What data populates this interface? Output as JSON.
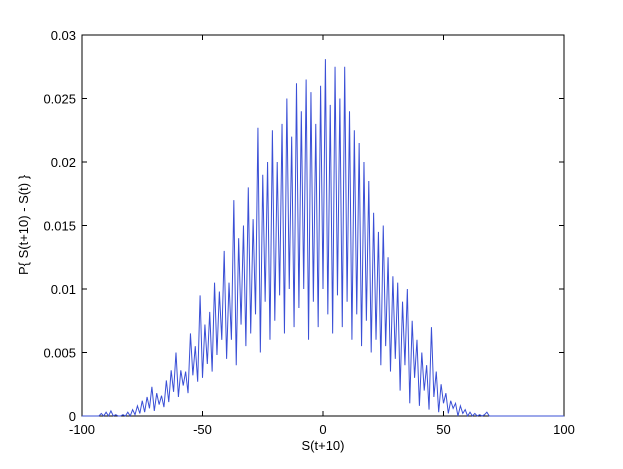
{
  "chart_data": {
    "type": "line",
    "xlabel": "S(t+10)",
    "ylabel": "P{ S(t+10) - S(t) }",
    "color": "#3a4fd6",
    "xlim": [
      -100,
      100
    ],
    "xticks": [
      -100,
      -50,
      0,
      50,
      100
    ],
    "ylim": [
      0,
      0.03
    ],
    "yticks": [
      0,
      0.005,
      0.01,
      0.015,
      0.02,
      0.025,
      0.03
    ],
    "x": [
      -100,
      -99,
      -98,
      -97,
      -96,
      -95,
      -94,
      -93,
      -92,
      -91,
      -90,
      -89,
      -88,
      -87,
      -86,
      -85,
      -84,
      -83,
      -82,
      -81,
      -80,
      -79,
      -78,
      -77,
      -76,
      -75,
      -74,
      -73,
      -72,
      -71,
      -70,
      -69,
      -68,
      -67,
      -66,
      -65,
      -64,
      -63,
      -62,
      -61,
      -60,
      -59,
      -58,
      -57,
      -56,
      -55,
      -54,
      -53,
      -52,
      -51,
      -50,
      -49,
      -48,
      -47,
      -46,
      -45,
      -44,
      -43,
      -42,
      -41,
      -40,
      -39,
      -38,
      -37,
      -36,
      -35,
      -34,
      -33,
      -32,
      -31,
      -30,
      -29,
      -28,
      -27,
      -26,
      -25,
      -24,
      -23,
      -22,
      -21,
      -20,
      -19,
      -18,
      -17,
      -16,
      -15,
      -14,
      -13,
      -12,
      -11,
      -10,
      -9,
      -8,
      -7,
      -6,
      -5,
      -4,
      -3,
      -2,
      -1,
      0,
      1,
      2,
      3,
      4,
      5,
      6,
      7,
      8,
      9,
      10,
      11,
      12,
      13,
      14,
      15,
      16,
      17,
      18,
      19,
      20,
      21,
      22,
      23,
      24,
      25,
      26,
      27,
      28,
      29,
      30,
      31,
      32,
      33,
      34,
      35,
      36,
      37,
      38,
      39,
      40,
      41,
      42,
      43,
      44,
      45,
      46,
      47,
      48,
      49,
      50,
      51,
      52,
      53,
      54,
      55,
      56,
      57,
      58,
      59,
      60,
      61,
      62,
      63,
      64,
      65,
      66,
      67,
      68,
      69,
      70,
      71,
      72,
      73,
      74,
      75,
      76,
      77,
      78,
      79,
      80,
      81,
      82,
      83,
      84,
      85,
      86,
      87,
      88,
      89,
      90,
      91,
      92,
      93,
      94,
      95,
      96,
      97,
      98,
      99,
      100
    ],
    "values": [
      0,
      0,
      0,
      0,
      0,
      0,
      0,
      0,
      0.0002,
      0,
      0.0003,
      0,
      0.0004,
      0,
      0.0001,
      0,
      0,
      0.0001,
      0,
      0.0003,
      0,
      0.0005,
      0.0001,
      0.0008,
      0.0002,
      0.0012,
      0.0003,
      0.0015,
      0.0006,
      0.0023,
      0.0004,
      0.0018,
      0.0009,
      0.0016,
      0.0007,
      0.0028,
      0.0011,
      0.0036,
      0.0019,
      0.005,
      0.0015,
      0.0036,
      0.0024,
      0.0035,
      0.0018,
      0.0065,
      0.0032,
      0.0055,
      0.0027,
      0.0095,
      0.003,
      0.0072,
      0.0041,
      0.0082,
      0.0035,
      0.0105,
      0.0048,
      0.0098,
      0.006,
      0.013,
      0.0045,
      0.0105,
      0.006,
      0.017,
      0.004,
      0.014,
      0.0072,
      0.015,
      0.0055,
      0.018,
      0.0065,
      0.0155,
      0.008,
      0.0227,
      0.005,
      0.019,
      0.009,
      0.02,
      0.006,
      0.0225,
      0.0075,
      0.02,
      0.0095,
      0.023,
      0.0065,
      0.025,
      0.01,
      0.022,
      0.007,
      0.0262,
      0.0085,
      0.024,
      0.01,
      0.0265,
      0.006,
      0.0255,
      0.009,
      0.023,
      0.007,
      0.026,
      0.01,
      0.0281,
      0.008,
      0.0245,
      0.0065,
      0.0275,
      0.0095,
      0.025,
      0.007,
      0.0275,
      0.009,
      0.024,
      0.006,
      0.0225,
      0.008,
      0.0215,
      0.0055,
      0.02,
      0.0075,
      0.0185,
      0.005,
      0.016,
      0.006,
      0.0145,
      0.004,
      0.015,
      0.0055,
      0.0125,
      0.0035,
      0.011,
      0.0045,
      0.0105,
      0.002,
      0.009,
      0.004,
      0.01,
      0.001,
      0.0075,
      0.003,
      0.006,
      0.0008,
      0.005,
      0.002,
      0.004,
      0.0005,
      0.007,
      0.0015,
      0.0035,
      0.0003,
      0.0025,
      0.001,
      0.0018,
      0.0002,
      0.0012,
      0.0006,
      0.001,
      0,
      0.0008,
      0.0002,
      0.0005,
      0,
      0.0003,
      0,
      0.0002,
      0,
      0.0001,
      0,
      0.0001,
      0.0003,
      0,
      0,
      0,
      0,
      0,
      0,
      0,
      0,
      0,
      0,
      0,
      0,
      0,
      0,
      0,
      0,
      0,
      0,
      0,
      0,
      0,
      0,
      0,
      0,
      0,
      0,
      0,
      0,
      0,
      0,
      0,
      0
    ]
  }
}
